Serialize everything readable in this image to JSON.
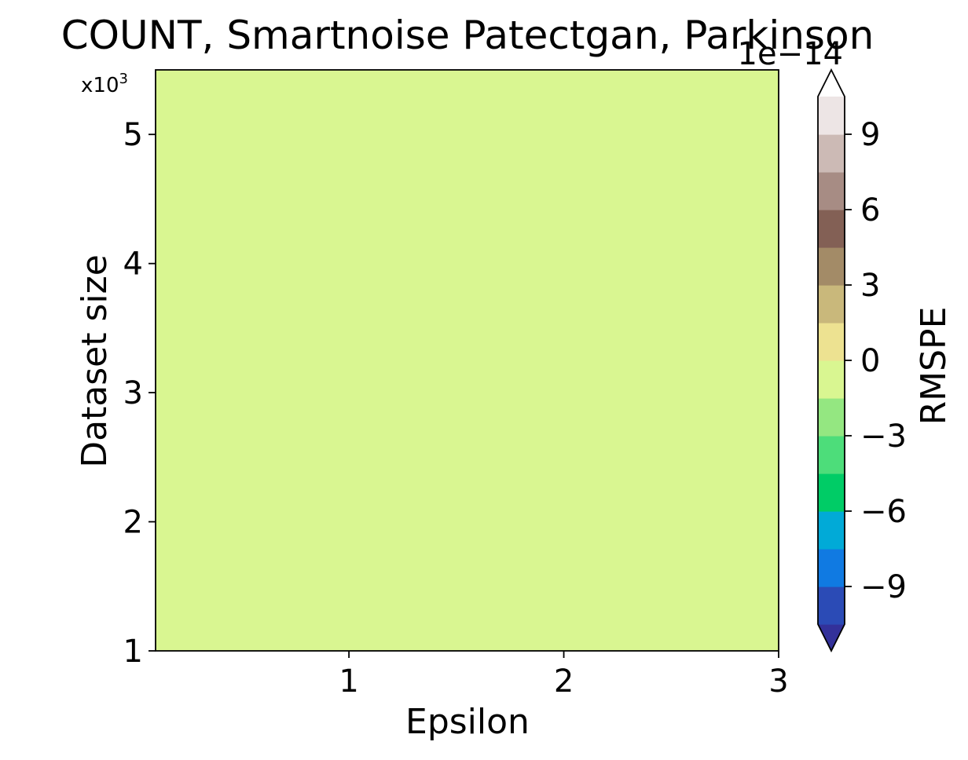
{
  "chart_data": {
    "type": "heatmap",
    "title": "COUNT, Smartnoise Patectgan, Parkinson",
    "xlabel": "Epsilon",
    "ylabel": "Dataset size",
    "y_multiplier_label": "x10",
    "y_multiplier_exponent": "3",
    "xlim": [
      0.1,
      3
    ],
    "ylim": [
      1,
      5.5
    ],
    "x_ticks": [
      1,
      2,
      3
    ],
    "x_tick_labels": [
      "1",
      "2",
      "3"
    ],
    "y_ticks": [
      1,
      2,
      3,
      4,
      5
    ],
    "y_tick_labels": [
      "1",
      "2",
      "3",
      "4",
      "5"
    ],
    "fill_value": 0,
    "fill_color": "#d9f691",
    "colorbar": {
      "label": "RMSPE",
      "offset_text": "1e−14",
      "range": [
        -10.5,
        10.5
      ],
      "extend": "both",
      "boundaries": [
        -10.5,
        -9,
        -7.5,
        -6,
        -4.5,
        -3,
        -1.5,
        0,
        1.5,
        3,
        4.5,
        6,
        7.5,
        9,
        10.5
      ],
      "ticks": [
        -9,
        -6,
        -3,
        0,
        3,
        6,
        9
      ],
      "tick_labels": [
        "−9",
        "−6",
        "−3",
        "0",
        "3",
        "6",
        "9"
      ],
      "colors": [
        "#2b4bb6",
        "#107ae2",
        "#01aad7",
        "#00cc66",
        "#4ddd7a",
        "#94e781",
        "#d9f691",
        "#ede291",
        "#c9b87b",
        "#a38b67",
        "#836055",
        "#a78c84",
        "#ccbab5",
        "#ede5e5"
      ],
      "under_color": "#33319a",
      "over_color": "#ffffff"
    }
  }
}
